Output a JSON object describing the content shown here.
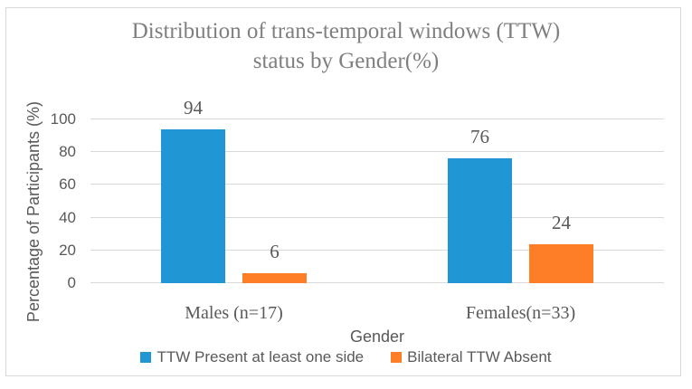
{
  "chart_data": {
    "type": "bar",
    "title": "Distribution of trans-temporal windows (TTW) status by Gender(%)",
    "title_lines": [
      "Distribution of trans-temporal windows (TTW)",
      "status by Gender(%)"
    ],
    "xlabel": "Gender",
    "ylabel": "Percentage of Participants (%)",
    "ylim": [
      0,
      100
    ],
    "yticks": [
      0,
      20,
      40,
      60,
      80,
      100
    ],
    "categories": [
      "Males (n=17)",
      "Females(n=33)"
    ],
    "series": [
      {
        "name": "TTW Present at least one side",
        "color": "#2196d5",
        "values": [
          94,
          76
        ]
      },
      {
        "name": "Bilateral TTW Absent",
        "color": "#fd7e26",
        "values": [
          6,
          24
        ]
      }
    ],
    "grid": true,
    "legend_position": "bottom",
    "style": {
      "gridline_color": "#d9d9d9",
      "frame_color": "#d9d9d9",
      "title_color": "#7f7f7f",
      "label_color": "#595959",
      "background": "#ffffff"
    }
  }
}
